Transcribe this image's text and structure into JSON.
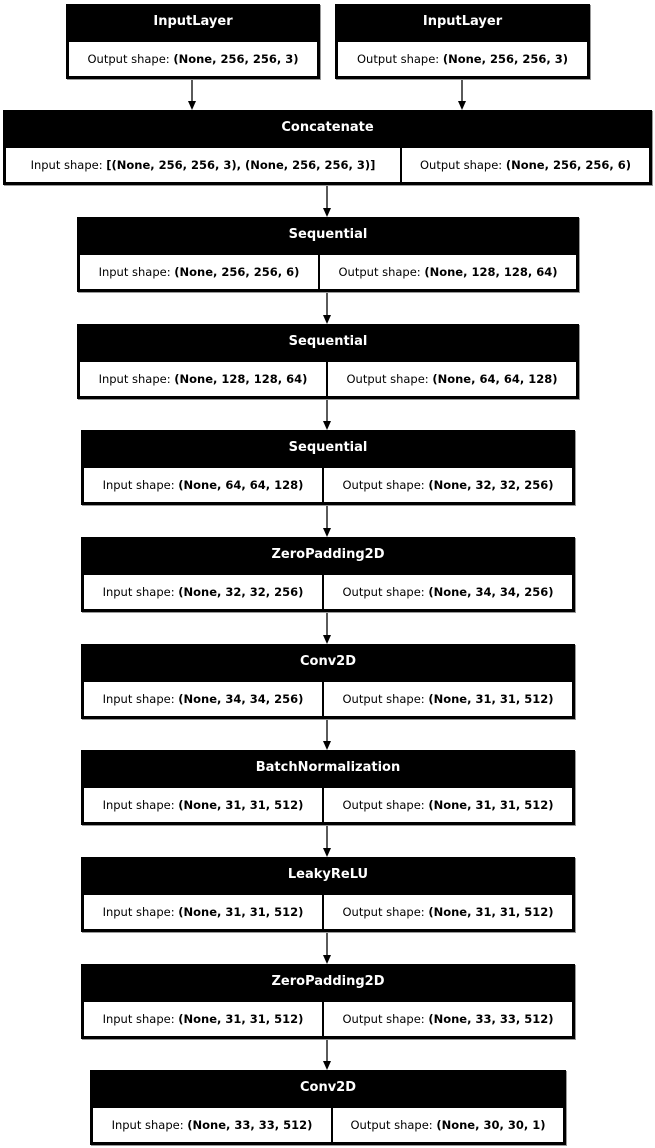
{
  "labels": {
    "input": "Input shape: ",
    "output": "Output shape: "
  },
  "layers": [
    {
      "name": "InputLayer",
      "output": "(None, 256, 256, 3)"
    },
    {
      "name": "InputLayer",
      "output": "(None, 256, 256, 3)"
    },
    {
      "name": "Concatenate",
      "input": "[(None, 256, 256, 3), (None, 256, 256, 3)]",
      "output": "(None, 256, 256, 6)"
    },
    {
      "name": "Sequential",
      "input": "(None, 256, 256, 6)",
      "output": "(None, 128, 128, 64)"
    },
    {
      "name": "Sequential",
      "input": "(None, 128, 128, 64)",
      "output": "(None, 64, 64, 128)"
    },
    {
      "name": "Sequential",
      "input": "(None, 64, 64, 128)",
      "output": "(None, 32, 32, 256)"
    },
    {
      "name": "ZeroPadding2D",
      "input": "(None, 32, 32, 256)",
      "output": "(None, 34, 34, 256)"
    },
    {
      "name": "Conv2D",
      "input": "(None, 34, 34, 256)",
      "output": "(None, 31, 31, 512)"
    },
    {
      "name": "BatchNormalization",
      "input": "(None, 31, 31, 512)",
      "output": "(None, 31, 31, 512)"
    },
    {
      "name": "LeakyReLU",
      "input": "(None, 31, 31, 512)",
      "output": "(None, 31, 31, 512)"
    },
    {
      "name": "ZeroPadding2D",
      "input": "(None, 31, 31, 512)",
      "output": "(None, 33, 33, 512)"
    },
    {
      "name": "Conv2D",
      "input": "(None, 33, 33, 512)",
      "output": "(None, 30, 30, 1)"
    }
  ]
}
